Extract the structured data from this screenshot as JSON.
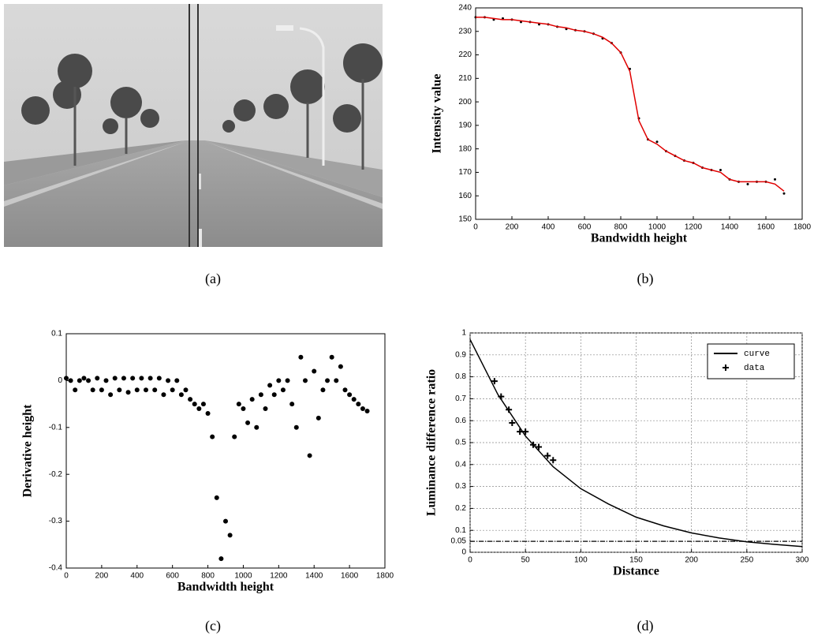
{
  "image": {
    "caption": "(a)"
  },
  "chart_data": [
    {
      "type": "line",
      "caption": "(b)",
      "x_label": "Bandwidth height",
      "y_label": "Intensity value",
      "x": [
        0,
        50,
        100,
        150,
        200,
        250,
        300,
        350,
        400,
        450,
        500,
        550,
        600,
        650,
        700,
        750,
        800,
        850,
        900,
        950,
        1000,
        1050,
        1100,
        1150,
        1200,
        1250,
        1300,
        1350,
        1400,
        1450,
        1500,
        1550,
        1600,
        1650,
        1700
      ],
      "series": [
        {
          "style": "points",
          "color": "#000000",
          "values": [
            236,
            236,
            235,
            235.5,
            235,
            234,
            234,
            233,
            233,
            232,
            231,
            230.5,
            230,
            229,
            227,
            225,
            221,
            214,
            193,
            184,
            183,
            179,
            177,
            175,
            174,
            172,
            171,
            171,
            167,
            166,
            165,
            166,
            166,
            167,
            161
          ]
        },
        {
          "style": "line",
          "color": "#e00000",
          "values": [
            236,
            236,
            235.5,
            235,
            235,
            234.5,
            234,
            233.5,
            233,
            232,
            231.5,
            230.5,
            230,
            229,
            227.5,
            225,
            221,
            213,
            192,
            184,
            182,
            179,
            177,
            175,
            174,
            172,
            171,
            170,
            167,
            166,
            166,
            166,
            166,
            165,
            162
          ]
        }
      ],
      "xlim": [
        0,
        1800
      ],
      "xticks": [
        0,
        200,
        400,
        600,
        800,
        1000,
        1200,
        1400,
        1600,
        1800
      ],
      "ylim": [
        150,
        240
      ],
      "yticks": [
        150,
        160,
        170,
        180,
        190,
        200,
        210,
        220,
        230,
        240
      ],
      "grid": false
    },
    {
      "type": "scatter",
      "caption": "(c)",
      "x_label": "Bandwidth height",
      "y_label": "Derivative height",
      "x": [
        0,
        25,
        50,
        75,
        100,
        125,
        150,
        175,
        200,
        225,
        250,
        275,
        300,
        325,
        350,
        375,
        400,
        425,
        450,
        475,
        500,
        525,
        550,
        575,
        600,
        625,
        650,
        675,
        700,
        725,
        750,
        775,
        800,
        825,
        850,
        875,
        900,
        925,
        950,
        975,
        1000,
        1025,
        1050,
        1075,
        1100,
        1125,
        1150,
        1175,
        1200,
        1225,
        1250,
        1275,
        1300,
        1325,
        1350,
        1375,
        1400,
        1425,
        1450,
        1475,
        1500,
        1525,
        1550,
        1575,
        1600,
        1625,
        1650,
        1675,
        1700
      ],
      "series": [
        {
          "style": "points",
          "color": "#000000",
          "values": [
            0.005,
            0,
            -0.02,
            0,
            0.005,
            0,
            -0.02,
            0.005,
            -0.02,
            0,
            -0.03,
            0.005,
            -0.02,
            0.005,
            -0.025,
            0.005,
            -0.02,
            0.005,
            -0.02,
            0.005,
            -0.02,
            0.005,
            -0.03,
            0,
            -0.02,
            0,
            -0.03,
            -0.02,
            -0.04,
            -0.05,
            -0.06,
            -0.05,
            -0.07,
            -0.12,
            -0.25,
            -0.38,
            -0.3,
            -0.33,
            -0.12,
            -0.05,
            -0.06,
            -0.09,
            -0.04,
            -0.1,
            -0.03,
            -0.06,
            -0.01,
            -0.03,
            0,
            -0.02,
            0,
            -0.05,
            -0.1,
            0.05,
            0,
            -0.16,
            0.02,
            -0.08,
            -0.02,
            0,
            0.05,
            0,
            0.03,
            -0.02,
            -0.03,
            -0.04,
            -0.05,
            -0.06,
            -0.065
          ]
        }
      ],
      "xlim": [
        0,
        1800
      ],
      "xticks": [
        0,
        200,
        400,
        600,
        800,
        1000,
        1200,
        1400,
        1600,
        1800
      ],
      "ylim": [
        -0.4,
        0.1
      ],
      "yticks": [
        -0.4,
        -0.3,
        -0.2,
        -0.1,
        0,
        0.1
      ],
      "grid": false
    },
    {
      "type": "line",
      "caption": "(d)",
      "x_label": "Distance",
      "y_label": "Luminance difference ratio",
      "series": [
        {
          "name": "curve",
          "style": "line",
          "color": "#000000",
          "x": [
            0,
            25,
            50,
            75,
            100,
            125,
            150,
            175,
            200,
            225,
            250,
            275,
            300
          ],
          "values": [
            0.97,
            0.72,
            0.53,
            0.39,
            0.29,
            0.22,
            0.16,
            0.12,
            0.088,
            0.065,
            0.048,
            0.036,
            0.026
          ]
        },
        {
          "name": "data",
          "style": "plus",
          "color": "#000000",
          "x": [
            22,
            28,
            35,
            38,
            45,
            50,
            57,
            62,
            70,
            75
          ],
          "values": [
            0.78,
            0.71,
            0.65,
            0.59,
            0.55,
            0.55,
            0.49,
            0.48,
            0.44,
            0.42
          ]
        }
      ],
      "reference_line": 0.05,
      "xlim": [
        0,
        300
      ],
      "xticks": [
        0,
        50,
        100,
        150,
        200,
        250,
        300
      ],
      "ylim": [
        0,
        1
      ],
      "yticks": [
        0,
        0.05,
        0.1,
        0.2,
        0.3,
        0.4,
        0.5,
        0.6,
        0.7,
        0.8,
        0.9,
        1
      ],
      "grid": true,
      "legend": "upper right"
    }
  ]
}
